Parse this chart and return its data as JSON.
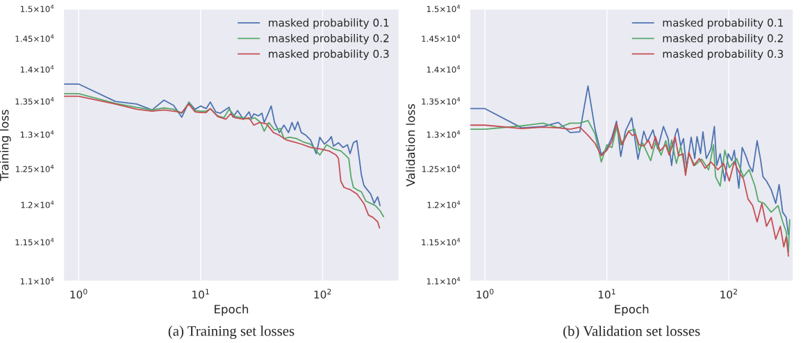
{
  "chart_data": [
    {
      "type": "line",
      "xlabel": "Epoch",
      "ylabel": "Training loss",
      "log": "xy",
      "grid": "x",
      "legend": "top right",
      "xlim": [
        0.75,
        424
      ],
      "ylim": [
        11000,
        15000
      ],
      "xticks": [
        {
          "value": 1,
          "label": "10$^{0}$"
        },
        {
          "value": 10,
          "label": "10$^{1}$"
        },
        {
          "value": 100,
          "label": "10$^{2}$"
        }
      ],
      "yticks": [
        {
          "value": 11000,
          "label": "1.1×10$^{4}$"
        },
        {
          "value": 11500,
          "label": "1.15×10$^{4}$"
        },
        {
          "value": 12000,
          "label": "1.2×10$^{4}$"
        },
        {
          "value": 12500,
          "label": "1.25×10$^{4}$"
        },
        {
          "value": 13000,
          "label": "1.3×10$^{4}$"
        },
        {
          "value": 13500,
          "label": "1.35×10$^{4}$"
        },
        {
          "value": 14000,
          "label": "1.4×10$^{4}$"
        },
        {
          "value": 14500,
          "label": "1.45×10$^{4}$"
        },
        {
          "value": 15000,
          "label": "1.5×10$^{4}$"
        }
      ],
      "annotations": [
        "(a) Training set losses"
      ],
      "series": [
        {
          "name": "masked probability 0.1",
          "color": "#4c72b0",
          "x": [
            0.75,
            1,
            2,
            3,
            4,
            5,
            6,
            7,
            8,
            9,
            10,
            11.1,
            12,
            13.3,
            14.5,
            17.1,
            18.4,
            20.1,
            22.4,
            25,
            26.1,
            27.3,
            29.8,
            31.8,
            33.2,
            35.5,
            37.9,
            40.4,
            44.2,
            48.2,
            52.6,
            56.1,
            59.2,
            62.6,
            66.9,
            73,
            79.7,
            88.8,
            94.9,
            103.5,
            113,
            118,
            123,
            135,
            147,
            160,
            168,
            179,
            191,
            200,
            208,
            218,
            232,
            248,
            265,
            283,
            296
          ],
          "values": [
            13770,
            13770,
            13500,
            13460,
            13370,
            13520,
            13440,
            13260,
            13490,
            13380,
            13430,
            13390,
            13490,
            13340,
            13320,
            13410,
            13260,
            13360,
            13230,
            13340,
            13240,
            13310,
            13280,
            13320,
            13180,
            13300,
            13430,
            13180,
            13030,
            13140,
            13030,
            13180,
            13070,
            13190,
            13030,
            12990,
            12920,
            12720,
            12960,
            12860,
            12920,
            12970,
            12830,
            12880,
            12810,
            12850,
            12720,
            12880,
            12910,
            12650,
            12420,
            12270,
            12210,
            12150,
            12020,
            12110,
            11990
          ]
        },
        {
          "name": "masked probability 0.2",
          "color": "#55a868",
          "x": [
            0.75,
            1,
            2,
            3,
            4,
            5,
            6,
            7,
            8,
            9,
            10,
            11.1,
            12,
            13.8,
            15.5,
            17.1,
            19.2,
            22.4,
            25.5,
            27.9,
            31.1,
            33.2,
            36.2,
            40.4,
            45.1,
            48.2,
            53.7,
            61.2,
            69.8,
            79.7,
            94.9,
            108,
            123,
            141,
            154,
            164,
            171,
            179,
            191,
            208,
            227,
            248,
            271,
            296,
            316
          ],
          "values": [
            13620,
            13620,
            13470,
            13410,
            13370,
            13400,
            13380,
            13320,
            13480,
            13360,
            13350,
            13350,
            13390,
            13280,
            13250,
            13380,
            13270,
            13250,
            13230,
            13250,
            13180,
            13050,
            13180,
            13070,
            13090,
            12940,
            12960,
            12940,
            12890,
            12860,
            12700,
            12850,
            12790,
            12760,
            12700,
            12650,
            12390,
            12240,
            12210,
            12180,
            12050,
            12020,
            11990,
            11920,
            11840
          ]
        },
        {
          "name": "masked probability 0.3",
          "color": "#c44e52",
          "x": [
            0.75,
            1,
            2,
            3,
            4,
            5,
            6,
            7,
            8,
            9,
            10,
            11.1,
            12,
            13.8,
            16.1,
            17.6,
            19.2,
            22.4,
            25,
            27.3,
            30.5,
            34.7,
            39.5,
            44.2,
            50.4,
            58.7,
            66.9,
            79.7,
            94.9,
            113,
            129,
            135,
            141,
            150,
            168,
            191,
            218,
            238,
            259,
            283,
            293
          ],
          "values": [
            13580,
            13580,
            13460,
            13380,
            13350,
            13370,
            13350,
            13330,
            13460,
            13340,
            13330,
            13330,
            13390,
            13270,
            13230,
            13310,
            13250,
            13230,
            13250,
            13140,
            13180,
            13160,
            13030,
            12990,
            12920,
            12890,
            12860,
            12810,
            12790,
            12760,
            12700,
            12650,
            12330,
            12240,
            12210,
            12150,
            12020,
            11860,
            11830,
            11770,
            11690
          ]
        }
      ]
    },
    {
      "type": "line",
      "xlabel": "Epoch",
      "ylabel": "Validation loss",
      "log": "xy",
      "grid": "x",
      "legend": "top right",
      "xlim": [
        0.75,
        339
      ],
      "ylim": [
        11000,
        15000
      ],
      "xticks": [
        {
          "value": 1,
          "label": "10$^{0}$"
        },
        {
          "value": 10,
          "label": "10$^{1}$"
        },
        {
          "value": 100,
          "label": "10$^{2}$"
        }
      ],
      "yticks": [
        {
          "value": 11000,
          "label": "1.1×10$^{4}$"
        },
        {
          "value": 11500,
          "label": "1.15×10$^{4}$"
        },
        {
          "value": 12000,
          "label": "1.2×10$^{4}$"
        },
        {
          "value": 12500,
          "label": "1.25×10$^{4}$"
        },
        {
          "value": 13000,
          "label": "1.3×10$^{4}$"
        },
        {
          "value": 13500,
          "label": "1.35×10$^{4}$"
        },
        {
          "value": 14000,
          "label": "1.4×10$^{4}$"
        },
        {
          "value": 14500,
          "label": "1.45×10$^{4}$"
        },
        {
          "value": 15000,
          "label": "1.5×10$^{4}$"
        }
      ],
      "annotations": [
        "(b) Validation set losses"
      ],
      "series": [
        {
          "name": "masked probability 0.1",
          "color": "#4c72b0",
          "x": [
            0.75,
            1,
            2,
            3,
            4,
            5,
            6,
            7,
            8,
            9,
            10,
            11,
            12,
            13,
            14.2,
            16,
            18,
            20.1,
            21.5,
            23.9,
            26.1,
            29.1,
            31.8,
            34,
            36.3,
            38,
            40.4,
            42.5,
            45.1,
            49.2,
            52.6,
            54.9,
            58.7,
            61.4,
            65.5,
            71.5,
            76.2,
            79.7,
            85.1,
            92.9,
            99,
            106,
            111,
            121,
            129,
            138,
            147,
            157,
            171,
            183,
            191,
            204,
            223,
            243,
            259,
            277,
            296,
            309
          ],
          "values": [
            13390,
            13390,
            13100,
            13120,
            13180,
            13030,
            13040,
            13740,
            13080,
            12710,
            12790,
            12960,
            13200,
            12680,
            13050,
            13250,
            12640,
            13050,
            12890,
            13070,
            12790,
            13120,
            12940,
            12550,
            12990,
            13090,
            12830,
            12940,
            12520,
            12960,
            12650,
            12970,
            12720,
            13040,
            12650,
            12790,
            13120,
            12550,
            12720,
            12330,
            12720,
            12620,
            12770,
            12230,
            12810,
            12690,
            12550,
            12460,
            12910,
            12620,
            12390,
            12330,
            12210,
            12020,
            12280,
            11900,
            11830,
            11600
          ]
        },
        {
          "name": "masked probability 0.2",
          "color": "#55a868",
          "x": [
            0.75,
            1,
            2,
            3,
            4,
            5,
            6,
            7,
            8,
            9,
            10,
            11,
            12,
            13,
            15.1,
            16.9,
            18.4,
            19.6,
            22.9,
            25,
            27.9,
            30.4,
            32.5,
            34,
            37.2,
            40.4,
            44.2,
            47.1,
            52.6,
            60,
            68.4,
            75,
            78,
            85.1,
            92.9,
            101,
            116,
            132,
            147,
            164,
            175,
            195,
            223,
            254,
            277,
            296,
            309,
            316
          ],
          "values": [
            13080,
            13080,
            13130,
            13170,
            13100,
            13170,
            13170,
            13210,
            13010,
            12600,
            12850,
            12810,
            13110,
            12850,
            13050,
            13080,
            12760,
            12880,
            12620,
            12880,
            12700,
            12910,
            12720,
            12920,
            12580,
            12830,
            12440,
            12720,
            12550,
            12640,
            12490,
            12850,
            12390,
            12260,
            12770,
            12520,
            12650,
            12390,
            12490,
            12260,
            12050,
            12020,
            11900,
            11990,
            11770,
            11640,
            11370,
            11800
          ]
        },
        {
          "name": "masked probability 0.3",
          "color": "#c44e52",
          "x": [
            0.75,
            1,
            2,
            3,
            4,
            5,
            6,
            7,
            8,
            9,
            10,
            11,
            12,
            13.3,
            15.1,
            16.1,
            17.2,
            18.4,
            20.1,
            21.9,
            23.4,
            25,
            27.3,
            30.4,
            32.5,
            36.3,
            38.7,
            42.3,
            44.2,
            47.1,
            51.5,
            57.4,
            64,
            71.5,
            81.5,
            90.8,
            101,
            111,
            121,
            132,
            144,
            157,
            171,
            187,
            204,
            223,
            243,
            265,
            283,
            296,
            309
          ],
          "values": [
            13140,
            13140,
            13090,
            13110,
            13100,
            13080,
            13110,
            12990,
            12870,
            12690,
            12770,
            12900,
            13170,
            12850,
            13050,
            12990,
            13000,
            12850,
            12830,
            12920,
            12790,
            12970,
            12760,
            12850,
            12700,
            12970,
            12690,
            12720,
            12410,
            12740,
            12550,
            12650,
            12510,
            12600,
            12490,
            12580,
            12330,
            12600,
            12460,
            12360,
            12080,
            11990,
            11770,
            12020,
            11710,
            11830,
            11540,
            11710,
            11440,
            11570,
            11320
          ]
        }
      ]
    }
  ]
}
